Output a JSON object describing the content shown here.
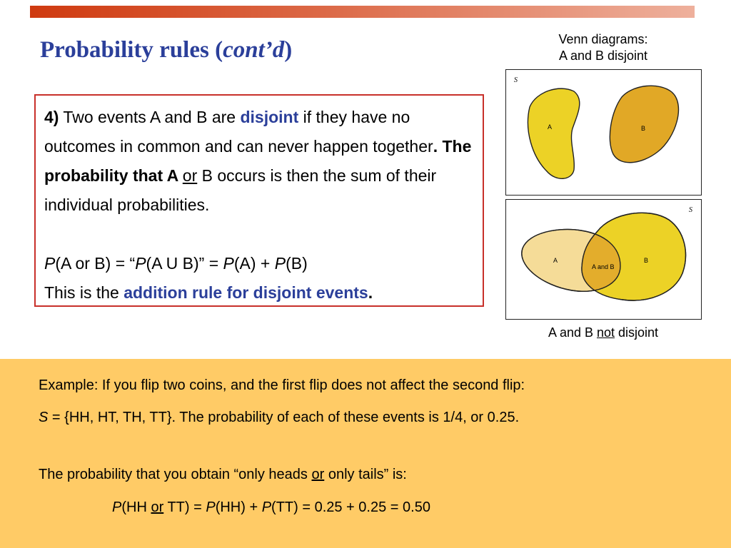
{
  "title": {
    "main": "Probability rules (",
    "italic": "cont’d",
    "close": ")"
  },
  "venn": {
    "caption_top_line1": "Venn diagrams:",
    "caption_top_line2": "A and B disjoint",
    "caption_bottom_pre": "A and B ",
    "caption_bottom_not": "not",
    "caption_bottom_post": " disjoint",
    "disjoint": {
      "s_label": "S",
      "a_label": "A",
      "b_label": "B"
    },
    "overlap": {
      "s_label": "S",
      "a_label": "A",
      "b_label": "B",
      "ab_label": "A and B"
    },
    "colors": {
      "a_disjoint": "#ecd226",
      "b_disjoint": "#e1a826",
      "a_overlap": "#f5dc98",
      "b_overlap": "#ecd226",
      "intersection": "#e3ad2c"
    }
  },
  "rule": {
    "number": "4)",
    "t1": " Two events A and B are ",
    "disjoint_word": "disjoint",
    "t2": " if they have no outcomes in common and can never happen together",
    "t3": ". The probability that A ",
    "or_word": "or",
    "t4": " B occurs is then the sum of their individual probabilities.",
    "f1": "P",
    "f2": "(A or B) = “",
    "f3": "P",
    "f4": "(A U B)” = ",
    "f5": "P",
    "f6": "(A) + ",
    "f7": "P",
    "f8": "(B)",
    "a1": "This is the ",
    "a2": "addition rule for disjoint events",
    "a3": "."
  },
  "example": {
    "line1": "Example: If you flip two coins, and the first flip does not affect the second flip:",
    "l2_s": "S",
    "l2_rest": " = {HH, HT, TH, TT}. The probability of each of these events is 1/4, or 0.25.",
    "l3_pre": "The probability that you obtain “only heads ",
    "l3_or": "or",
    "l3_post": " only tails” is:",
    "l4_p1": "P",
    "l4_a": "(HH ",
    "l4_or": "or",
    "l4_b": " TT) = ",
    "l4_p2": "P",
    "l4_c": "(HH) + ",
    "l4_p3": "P",
    "l4_d": "(TT) = 0.25 + 0.25 = 0.50"
  }
}
